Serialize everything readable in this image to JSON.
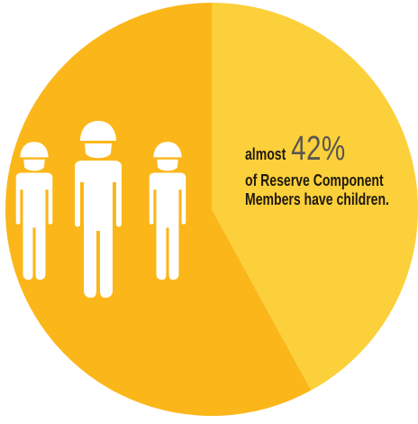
{
  "chart_data": {
    "type": "pie",
    "title": "",
    "slices": [
      {
        "label": "Reserve Component Members have children",
        "value": 42,
        "color": "#fcd03a"
      },
      {
        "label": "",
        "value": 58,
        "color": "#fbb619"
      }
    ],
    "annotation": {
      "prefix": "almost",
      "value_text": "42%",
      "line2": "of Reserve Component",
      "line3": "Members have children."
    }
  },
  "icons": {
    "figure": "person-icon",
    "count": 3,
    "color": "#ffffff"
  }
}
